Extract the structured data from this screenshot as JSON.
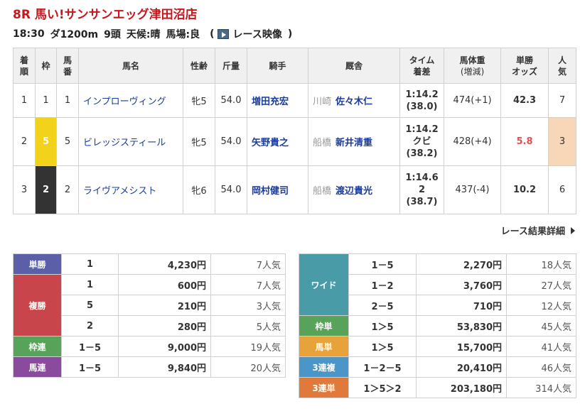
{
  "race": {
    "title": "8R 馬い!サンサンエッグ津田沼店",
    "time": "18:30",
    "course": "ダ1200m",
    "heads": "9頭",
    "weather": "天候:晴",
    "track": "馬場:良",
    "video_label": "レース映像",
    "open_paren": "(",
    "close_paren": ")"
  },
  "headers": {
    "rank": "着順",
    "waku": "枠",
    "num": "馬番",
    "name": "馬名",
    "sexage": "性齢",
    "weight": "斤量",
    "jockey": "騎手",
    "stable": "厩舎",
    "time": "タイム着差",
    "bodyweight": "馬体重(増減)",
    "odds": "単勝オッズ",
    "pop": "人気"
  },
  "rows": [
    {
      "rank": "1",
      "waku": "1",
      "num": "1",
      "name": "インプローヴィング",
      "sexage": "牝5",
      "weight": "54.0",
      "jockey": "増田充宏",
      "loc": "川崎",
      "trainer": "佐々木仁",
      "time": "1:14.2",
      "margin": "",
      "time2": "(38.0)",
      "bw": "474(+1)",
      "odds": "42.3",
      "pop": "7"
    },
    {
      "rank": "2",
      "waku": "5",
      "num": "5",
      "name": "ビレッジスティール",
      "sexage": "牝5",
      "weight": "54.0",
      "jockey": "矢野貴之",
      "loc": "船橋",
      "trainer": "新井清重",
      "time": "1:14.2",
      "margin": "クビ",
      "time2": "(38.2)",
      "bw": "428(+4)",
      "odds": "5.8",
      "pop": "3"
    },
    {
      "rank": "3",
      "waku": "2",
      "num": "2",
      "name": "ライヴアメシスト",
      "sexage": "牝6",
      "weight": "54.0",
      "jockey": "岡村健司",
      "loc": "船橋",
      "trainer": "渡辺貴光",
      "time": "1:14.6",
      "margin": "2",
      "time2": "(38.7)",
      "bw": "437(-4)",
      "odds": "10.2",
      "pop": "6"
    }
  ],
  "detail_link": "レース結果詳細",
  "payouts_left": {
    "win": {
      "label": "単勝",
      "items": [
        {
          "comb": "1",
          "amt": "4,230円",
          "pop": "7人気"
        }
      ]
    },
    "place": {
      "label": "複勝",
      "items": [
        {
          "comb": "1",
          "amt": "600円",
          "pop": "7人気"
        },
        {
          "comb": "5",
          "amt": "210円",
          "pop": "3人気"
        },
        {
          "comb": "2",
          "amt": "280円",
          "pop": "5人気"
        }
      ]
    },
    "wakuren": {
      "label": "枠連",
      "items": [
        {
          "comb": "1－5",
          "amt": "9,000円",
          "pop": "19人気"
        }
      ]
    },
    "umaren": {
      "label": "馬連",
      "items": [
        {
          "comb": "1－5",
          "amt": "9,840円",
          "pop": "20人気"
        }
      ]
    }
  },
  "payouts_right": {
    "wide": {
      "label": "ワイド",
      "items": [
        {
          "comb": "1－5",
          "amt": "2,270円",
          "pop": "18人気"
        },
        {
          "comb": "1－2",
          "amt": "3,760円",
          "pop": "27人気"
        },
        {
          "comb": "2－5",
          "amt": "710円",
          "pop": "12人気"
        }
      ]
    },
    "wakutan": {
      "label": "枠単",
      "items": [
        {
          "comb": "1＞5",
          "amt": "53,830円",
          "pop": "45人気"
        }
      ]
    },
    "umatan": {
      "label": "馬単",
      "items": [
        {
          "comb": "1＞5",
          "amt": "15,700円",
          "pop": "41人気"
        }
      ]
    },
    "trio": {
      "label": "3連複",
      "items": [
        {
          "comb": "1－2－5",
          "amt": "20,410円",
          "pop": "46人気"
        }
      ]
    },
    "trifecta": {
      "label": "3連単",
      "items": [
        {
          "comb": "1＞5＞2",
          "amt": "203,180円",
          "pop": "314人気"
        }
      ]
    }
  },
  "colors": {
    "title": "#c8161d",
    "waku5": "#f2d21b",
    "waku2": "#333333",
    "fav_odds": "#e05050",
    "fav_pop_bg": "#f8d6b8"
  }
}
